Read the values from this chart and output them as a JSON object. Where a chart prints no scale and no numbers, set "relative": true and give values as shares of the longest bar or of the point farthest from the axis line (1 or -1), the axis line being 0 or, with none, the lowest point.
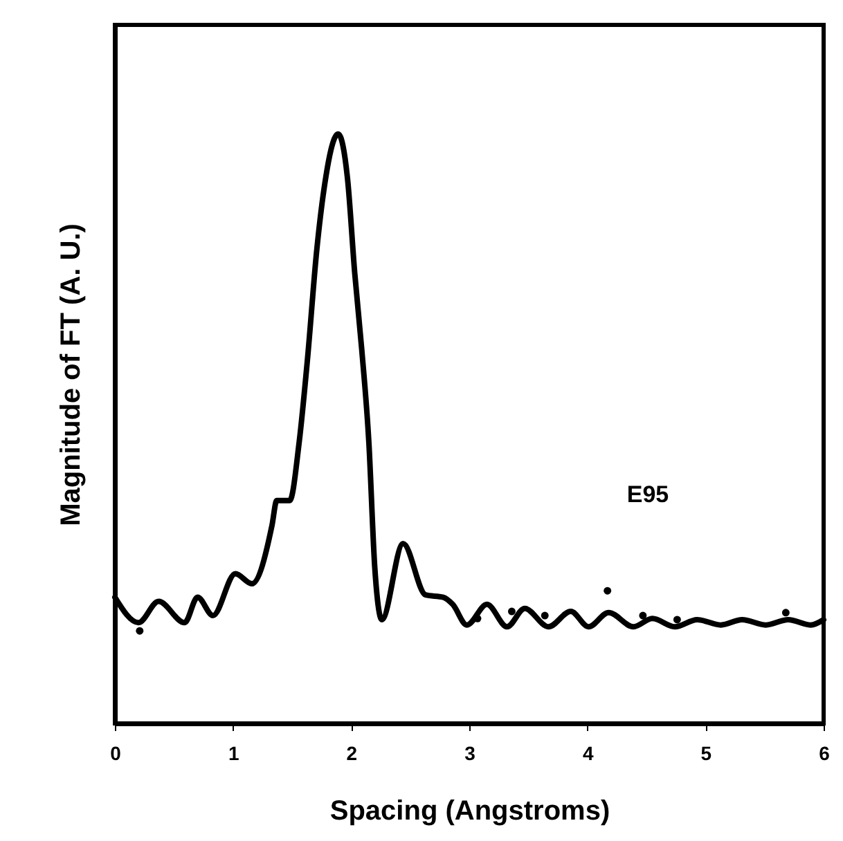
{
  "chart_data": {
    "type": "line",
    "xlabel": "Spacing (Angstroms)",
    "ylabel": "Magnitude of FT (A. U.)",
    "annotations": [
      "E95"
    ],
    "relative": true,
    "xlim": [
      0,
      6
    ],
    "xticks": [
      0,
      1,
      2,
      3,
      4,
      5,
      6
    ],
    "series": [
      {
        "type": "line",
        "color": "#000000",
        "x": [
          0,
          0.2,
          0.37,
          0.59,
          0.7,
          0.83,
          1.02,
          1.16,
          1.33,
          1.37,
          1.48,
          1.56,
          1.63,
          1.71,
          1.77,
          1.89,
          1.97,
          2.03,
          2.09,
          2.15,
          2.2,
          2.26,
          2.44,
          2.63,
          2.78,
          2.86,
          2.98,
          3.15,
          3.32,
          3.47,
          3.67,
          3.86,
          4.01,
          4.18,
          4.39,
          4.55,
          4.74,
          4.93,
          5.13,
          5.31,
          5.51,
          5.7,
          5.89,
          6.0
        ],
        "values": [
          0.214,
          0.171,
          0.207,
          0.171,
          0.214,
          0.183,
          0.254,
          0.237,
          0.336,
          0.378,
          0.378,
          0.477,
          0.617,
          0.805,
          0.906,
          1.0,
          0.923,
          0.765,
          0.634,
          0.477,
          0.265,
          0.176,
          0.305,
          0.218,
          0.214,
          0.202,
          0.167,
          0.202,
          0.164,
          0.195,
          0.164,
          0.19,
          0.164,
          0.188,
          0.164,
          0.178,
          0.164,
          0.176,
          0.167,
          0.176,
          0.167,
          0.176,
          0.167,
          0.176
        ]
      },
      {
        "type": "scatter",
        "color": "#000000",
        "x": [
          0.21,
          3.07,
          3.36,
          3.64,
          4.17,
          4.47,
          4.76,
          5.68
        ],
        "values": [
          0.157,
          0.178,
          0.19,
          0.183,
          0.225,
          0.183,
          0.176,
          0.188
        ]
      }
    ]
  }
}
